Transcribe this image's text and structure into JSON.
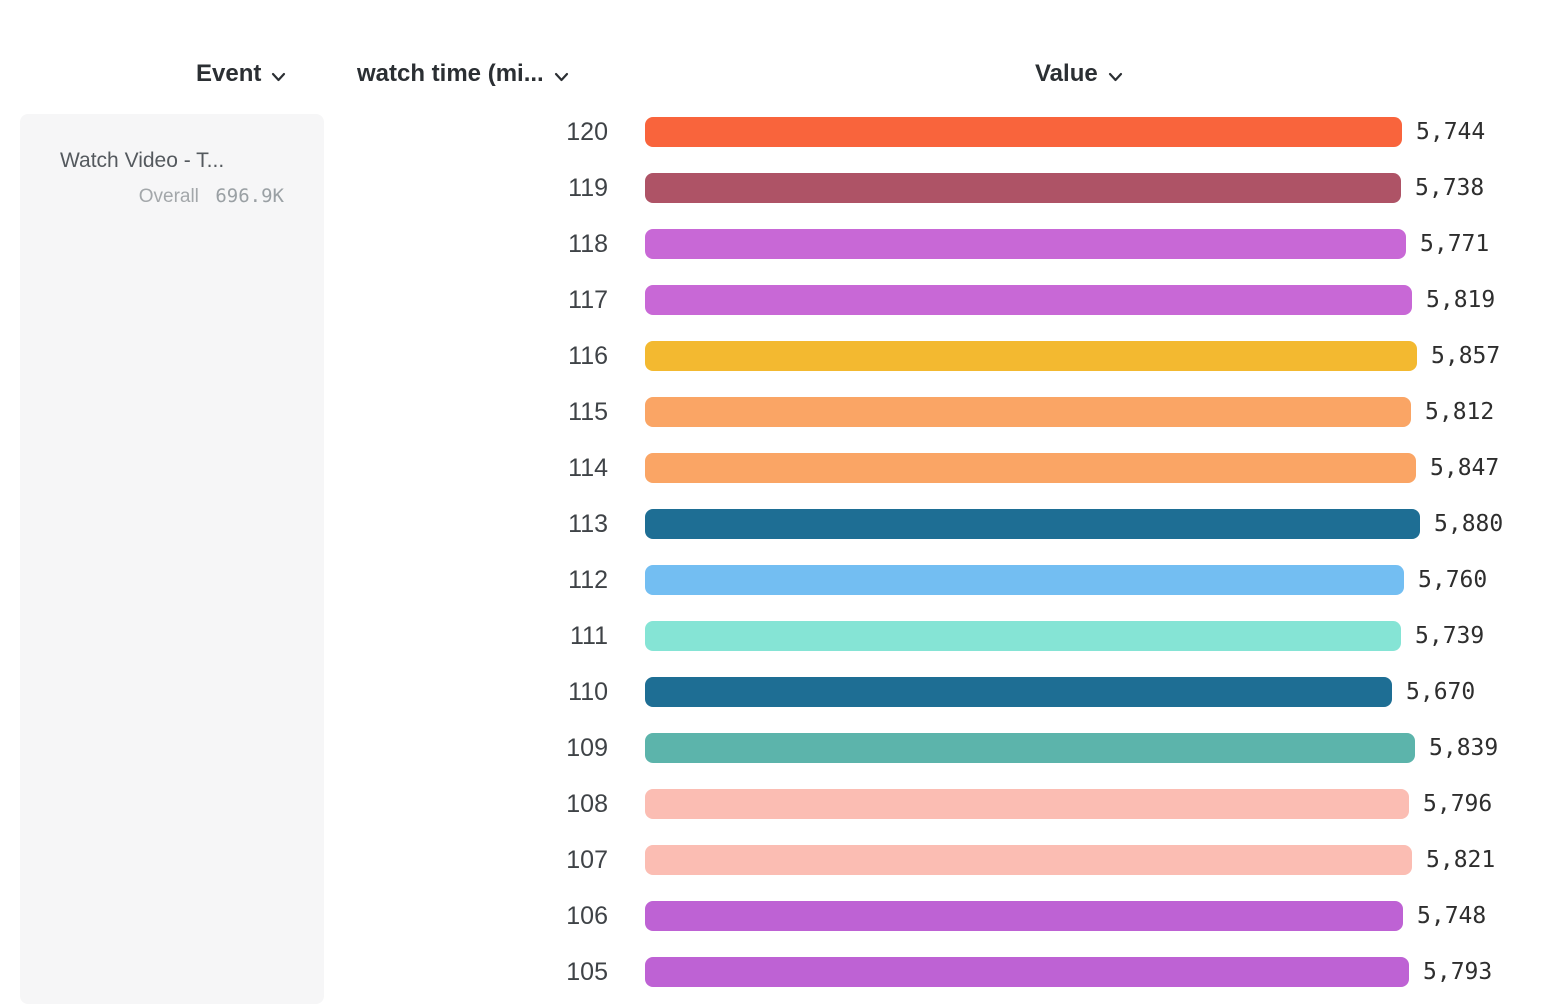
{
  "header": {
    "event": "Event",
    "watch_time": "watch time (mi...",
    "value": "Value"
  },
  "event_card": {
    "title": "Watch Video - T...",
    "overall_label": "Overall",
    "overall_value": "696.9K"
  },
  "chart_data": {
    "type": "bar",
    "orientation": "horizontal",
    "title": "",
    "xlabel": "Value",
    "ylabel": "watch time (mi...",
    "xlim": [
      0,
      5880
    ],
    "grid": false,
    "categories": [
      "120",
      "119",
      "118",
      "117",
      "116",
      "115",
      "114",
      "113",
      "112",
      "111",
      "110",
      "109",
      "108",
      "107",
      "106",
      "105"
    ],
    "values": [
      5744,
      5738,
      5771,
      5819,
      5857,
      5812,
      5847,
      5880,
      5760,
      5739,
      5670,
      5839,
      5796,
      5821,
      5748,
      5793
    ],
    "value_labels": [
      "5,744",
      "5,738",
      "5,771",
      "5,819",
      "5,857",
      "5,812",
      "5,847",
      "5,880",
      "5,760",
      "5,739",
      "5,670",
      "5,839",
      "5,796",
      "5,821",
      "5,748",
      "5,793"
    ],
    "colors": [
      "#f9643c",
      "#ae5366",
      "#c868d6",
      "#c868d6",
      "#f3b930",
      "#faa565",
      "#faa565",
      "#1e6e94",
      "#73bef2",
      "#85e4d5",
      "#1e6e94",
      "#5cb4ab",
      "#fbbdb3",
      "#fbbdb3",
      "#be62d4",
      "#be62d4"
    ]
  },
  "icons": {
    "chevron_down": "chevron-down-icon"
  }
}
